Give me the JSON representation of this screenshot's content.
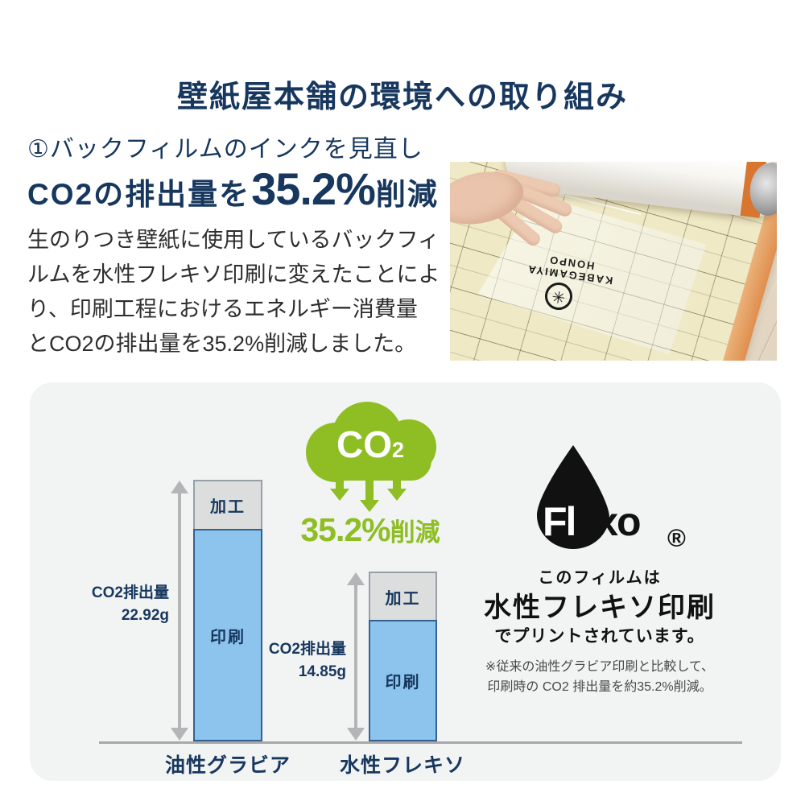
{
  "header": {
    "title": "壁紙屋本舗の環境への取り組み"
  },
  "intro": {
    "heading": "①バックフィルムのインクを見直し",
    "co2_line": {
      "prefix": "CO2の排出量を",
      "highlight": "35.2%",
      "suffix": "削減"
    },
    "body_lines": [
      "生のりつき壁紙に使用しているバックフィ",
      "ルムを水性フレキソ印刷に変えたことによ",
      "り、印刷工程におけるエネルギー消費量",
      "とCO2の排出量を35.2%削減しました。"
    ]
  },
  "photo": {
    "film_line1": "KABEGAMIYA",
    "film_line2": "HONPO",
    "film_logo_glyph": "✳"
  },
  "chart_data": {
    "type": "bar",
    "title": "",
    "categories": [
      "油性グラビア",
      "水性フレキソ"
    ],
    "series": [
      {
        "name": "印刷",
        "values": [
          18.6,
          10.6
        ],
        "color": "#8cc4ee"
      },
      {
        "name": "加工",
        "values": [
          4.3,
          4.25
        ],
        "color": "#dcdddd"
      }
    ],
    "totals": [
      {
        "label": "CO2排出量",
        "text": "22.92g",
        "value": 22.92
      },
      {
        "label": "CO2排出量",
        "text": "14.85g",
        "value": 14.85
      }
    ],
    "unit": "g",
    "ylim": [
      0,
      24
    ],
    "grid": false,
    "legend": "none",
    "badge": {
      "cloud_label": "CO",
      "cloud_sub": "2",
      "value": "35.2%",
      "suffix": "削減"
    }
  },
  "flexo": {
    "logo_left": "Fl",
    "logo_right": "exo",
    "registered": "®",
    "caption_line1": "このフィルムは",
    "caption_line2": "水性フレキソ印刷",
    "caption_line3": "でプリントされています。",
    "note_line1": "※従来の油性グラビア印刷と比較して、",
    "note_line2": "印刷時の CO2 排出量を約35.2%削減。"
  },
  "colors": {
    "navy": "#17375e",
    "green": "#8ebe23",
    "bar_blue": "#8cc4ee",
    "bar_gray": "#dcdddd",
    "panel_bg": "#f2f3f3",
    "axis_gray": "#a6a8aa",
    "black": "#111111"
  }
}
